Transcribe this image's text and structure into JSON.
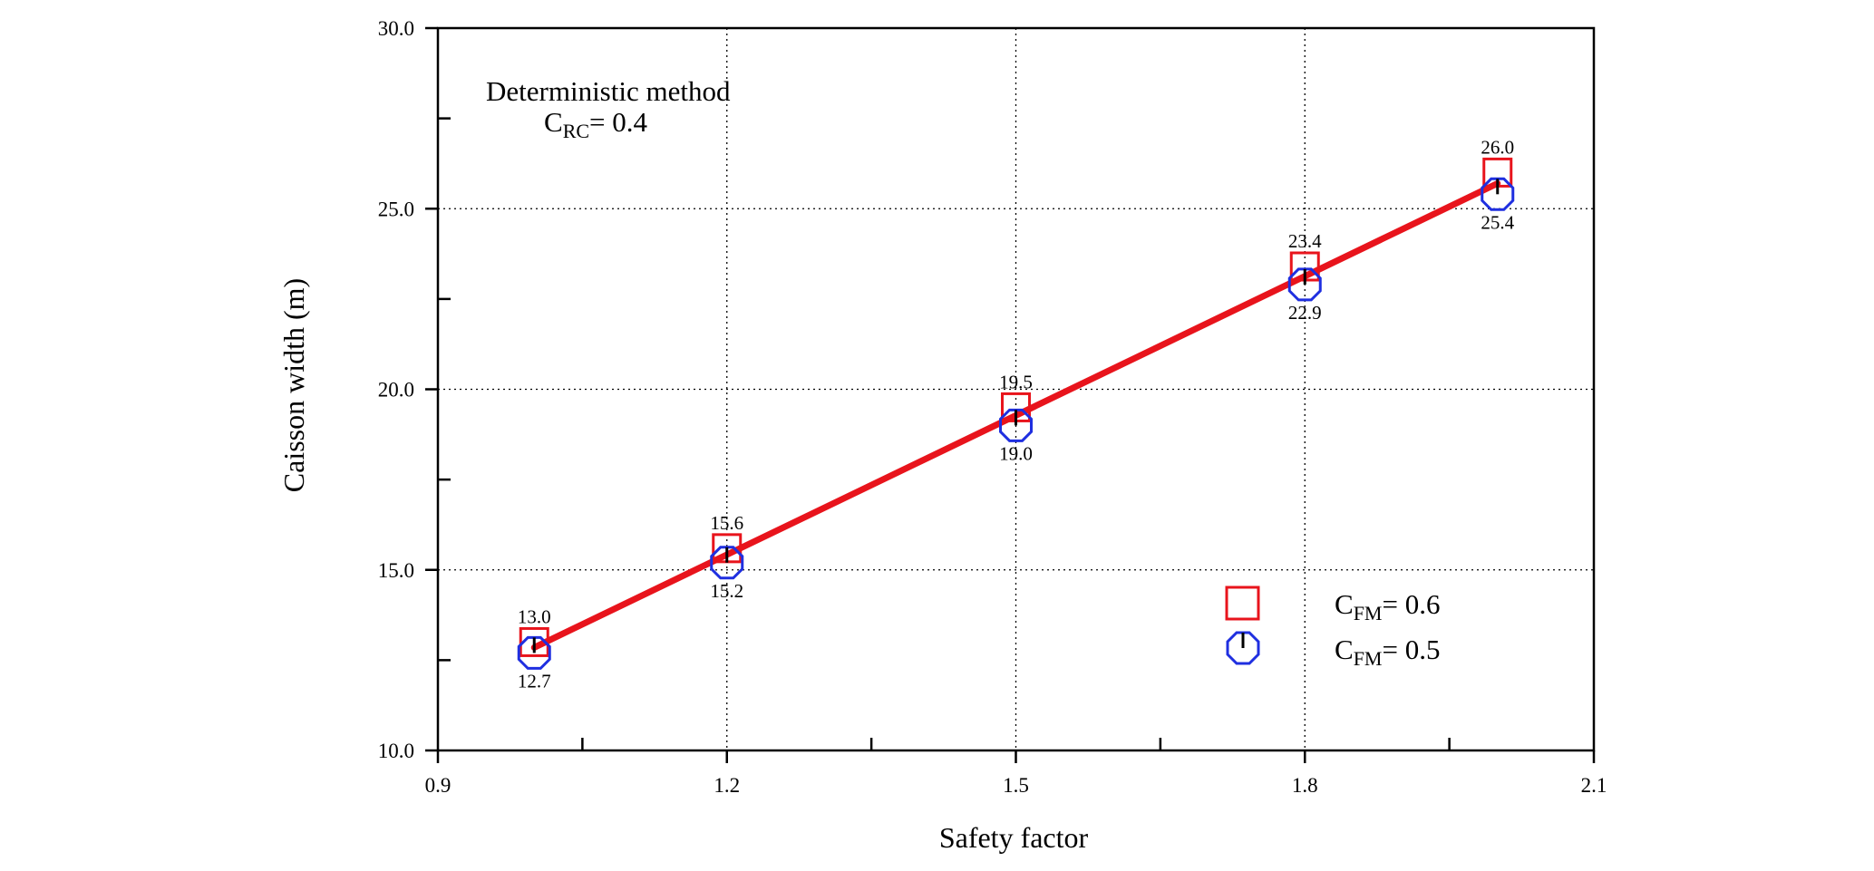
{
  "chart_data": {
    "type": "scatter",
    "xlabel": "Safety factor",
    "ylabel": "Caisson width (m)",
    "xlim": [
      0.9,
      2.1
    ],
    "ylim": [
      10.0,
      30.0
    ],
    "x_ticks": [
      0.9,
      1.2,
      1.5,
      1.8,
      2.1
    ],
    "x_tick_labels": [
      "0.9",
      "1.2",
      "1.5",
      "1.8",
      "2.1"
    ],
    "y_ticks": [
      10,
      15,
      20,
      25,
      30
    ],
    "y_tick_labels": [
      "10.0",
      "15.0",
      "20.0",
      "25.0",
      "30.0"
    ],
    "grid": true,
    "legend_position": "bottom-right",
    "annotation": {
      "line1": "Deterministic method",
      "line2_main": "C",
      "line2_sub": "RC",
      "line2_rest": "= 0.4"
    },
    "x": [
      1.0,
      1.2,
      1.5,
      1.8,
      2.0
    ],
    "series": [
      {
        "legend_main": "C",
        "legend_sub": "FM",
        "legend_rest": "= 0.6",
        "marker": "square",
        "color": "#e8141c",
        "values": [
          13.0,
          15.6,
          19.5,
          23.4,
          26.0
        ],
        "labels": [
          "13.0",
          "15.6",
          "19.5",
          "23.4",
          "26.0"
        ]
      },
      {
        "legend_main": "C",
        "legend_sub": "FM",
        "legend_rest": "= 0.5",
        "marker": "circle",
        "color": "#1f2fe0",
        "values": [
          12.7,
          15.2,
          19.0,
          22.9,
          25.4
        ],
        "labels": [
          "12.7",
          "15.2",
          "19.0",
          "22.9",
          "25.4"
        ]
      }
    ],
    "trend_line": {
      "color": "#e8141c",
      "x": [
        1.0,
        2.0
      ],
      "y": [
        12.85,
        25.7
      ]
    }
  }
}
